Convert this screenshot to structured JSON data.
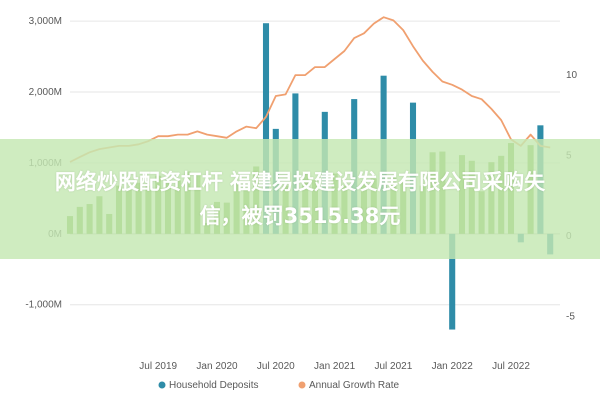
{
  "chart_data": {
    "type": "bar",
    "x_start": "2018-10",
    "x_end": "2022-12",
    "x_tick_labels": [
      "Jul 2019",
      "Jan 2020",
      "Jul 2020",
      "Jan 2021",
      "Jul 2021",
      "Jan 2022",
      "Jul 2022"
    ],
    "x_tick_months": [
      "2019-07",
      "2020-01",
      "2020-07",
      "2021-01",
      "2021-07",
      "2022-01",
      "2022-07"
    ],
    "y_left": {
      "ticks": [
        3000,
        2000,
        1000,
        0,
        -1000
      ],
      "tick_labels": [
        "3,000M",
        "2,000M",
        "1,000M",
        "0M",
        "-1,000M"
      ],
      "lim": [
        -1300,
        3100
      ]
    },
    "y_right": {
      "ticks": [
        10,
        5,
        0,
        -5
      ],
      "tick_labels": [
        "10",
        "5",
        "0",
        "-5"
      ],
      "lim": [
        -5.6,
        13.8
      ]
    },
    "series": [
      {
        "name": "Household Deposits",
        "kind": "bar",
        "axis": "left",
        "color": "#2E8CA8",
        "colors": {
          "normal": "#76B043",
          "highlight": "#2E8CA8"
        },
        "months": [
          "2018-10",
          "2018-11",
          "2018-12",
          "2019-01",
          "2019-02",
          "2019-03",
          "2019-04",
          "2019-05",
          "2019-06",
          "2019-07",
          "2019-08",
          "2019-09",
          "2019-10",
          "2019-11",
          "2019-12",
          "2020-01",
          "2020-02",
          "2020-03",
          "2020-04",
          "2020-05",
          "2020-06",
          "2020-07",
          "2020-08",
          "2020-09",
          "2020-10",
          "2020-11",
          "2020-12",
          "2021-01",
          "2021-02",
          "2021-03",
          "2021-04",
          "2021-05",
          "2021-06",
          "2021-07",
          "2021-08",
          "2021-09",
          "2021-10",
          "2021-11",
          "2021-12",
          "2022-01",
          "2022-02",
          "2022-03",
          "2022-04",
          "2022-05",
          "2022-06",
          "2022-07",
          "2022-08",
          "2022-09",
          "2022-10",
          "2022-11"
        ],
        "values": [
          250,
          380,
          420,
          530,
          280,
          680,
          620,
          720,
          680,
          820,
          760,
          750,
          880,
          820,
          150,
          450,
          440,
          720,
          620,
          950,
          2970,
          1480,
          680,
          1980,
          870,
          760,
          1720,
          850,
          680,
          1900,
          740,
          780,
          2230,
          820,
          740,
          1850,
          680,
          1150,
          1160,
          -1350,
          1110,
          1030,
          600,
          1010,
          1100,
          1280,
          -120,
          1250,
          1530,
          -290
        ],
        "highlight": [
          false,
          false,
          false,
          false,
          false,
          false,
          false,
          false,
          false,
          false,
          false,
          false,
          false,
          false,
          false,
          false,
          false,
          false,
          false,
          false,
          true,
          true,
          false,
          true,
          false,
          false,
          true,
          false,
          false,
          true,
          false,
          false,
          true,
          false,
          false,
          true,
          false,
          false,
          false,
          true,
          false,
          false,
          false,
          false,
          false,
          false,
          true,
          false,
          true,
          true
        ]
      },
      {
        "name": "Annual Growth Rate",
        "kind": "line",
        "axis": "right",
        "color": "#F0A070",
        "months": [
          "2018-10",
          "2018-11",
          "2018-12",
          "2019-01",
          "2019-02",
          "2019-03",
          "2019-04",
          "2019-05",
          "2019-06",
          "2019-07",
          "2019-08",
          "2019-09",
          "2019-10",
          "2019-11",
          "2019-12",
          "2020-01",
          "2020-02",
          "2020-03",
          "2020-04",
          "2020-05",
          "2020-06",
          "2020-07",
          "2020-08",
          "2020-09",
          "2020-10",
          "2020-11",
          "2020-12",
          "2021-01",
          "2021-02",
          "2021-03",
          "2021-04",
          "2021-05",
          "2021-06",
          "2021-07",
          "2021-08",
          "2021-09",
          "2021-10",
          "2021-11",
          "2021-12",
          "2022-01",
          "2022-02",
          "2022-03",
          "2022-04",
          "2022-05",
          "2022-06",
          "2022-07",
          "2022-08",
          "2022-09",
          "2022-10",
          "2022-11"
        ],
        "values": [
          4.6,
          4.9,
          5.2,
          5.4,
          5.5,
          5.6,
          5.6,
          5.7,
          5.9,
          6.2,
          6.2,
          6.3,
          6.3,
          6.5,
          6.3,
          6.2,
          6.1,
          6.5,
          6.8,
          6.7,
          7.4,
          8.7,
          8.8,
          10.0,
          10.0,
          10.5,
          10.5,
          11.0,
          11.5,
          12.3,
          12.6,
          13.2,
          13.6,
          13.4,
          12.8,
          11.8,
          10.9,
          10.2,
          9.6,
          9.4,
          9.1,
          8.7,
          8.5,
          7.9,
          7.2,
          6.0,
          5.6,
          6.3,
          5.6,
          5.5
        ]
      }
    ]
  },
  "overlay": {
    "line1": "网络炒股配资杠杆 福建易投建设发展有限公司采购失",
    "line2": "信，被罚3515.38元"
  }
}
